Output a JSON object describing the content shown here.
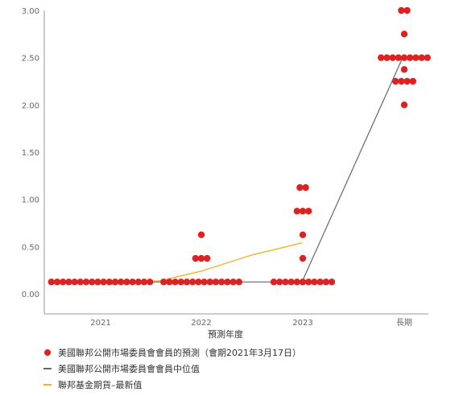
{
  "colors": {
    "dots": "#dd2222",
    "median": "#666666",
    "futures": "#f0b429",
    "axis": "#999999",
    "text": "#666666"
  },
  "chart_data": {
    "type": "scatter",
    "title": "",
    "xlabel": "預測年度",
    "ylabel": "",
    "categories": [
      "2021",
      "2022",
      "2023",
      "長期"
    ],
    "ylim": [
      0,
      3.0
    ],
    "yticks": [
      "0.00",
      "0.50",
      "1.00",
      "1.50",
      "2.00",
      "2.50",
      "3.00"
    ],
    "grid": false,
    "legend_position": "bottom-left",
    "series": [
      {
        "name": "美國聯邦公開市場委員會會員的預測（會期2021年3月17日）",
        "type": "dot",
        "points": {
          "2021": [
            [
              0.125,
              18
            ]
          ],
          "2022": [
            [
              0.625,
              1
            ],
            [
              0.375,
              3
            ],
            [
              0.125,
              14
            ]
          ],
          "2023": [
            [
              1.125,
              2
            ],
            [
              0.875,
              3
            ],
            [
              0.625,
              1
            ],
            [
              0.375,
              1
            ],
            [
              0.125,
              11
            ]
          ],
          "長期": [
            [
              3.0,
              2
            ],
            [
              2.75,
              1
            ],
            [
              2.5,
              9
            ],
            [
              2.375,
              1
            ],
            [
              2.25,
              4
            ],
            [
              2.0,
              1
            ]
          ]
        }
      },
      {
        "name": "美國聯邦公開市場委員會會員中位值",
        "type": "line",
        "values": [
          0.125,
          0.125,
          0.125,
          2.5
        ]
      },
      {
        "name": "聯邦基金期貨–最新值",
        "type": "line",
        "x_start": 0.1,
        "values_at": [
          [
            0.1,
            0.1
          ],
          [
            0.6,
            0.14
          ],
          [
            1.0,
            0.24
          ],
          [
            1.5,
            0.41
          ],
          [
            2.0,
            0.54
          ]
        ]
      }
    ]
  }
}
